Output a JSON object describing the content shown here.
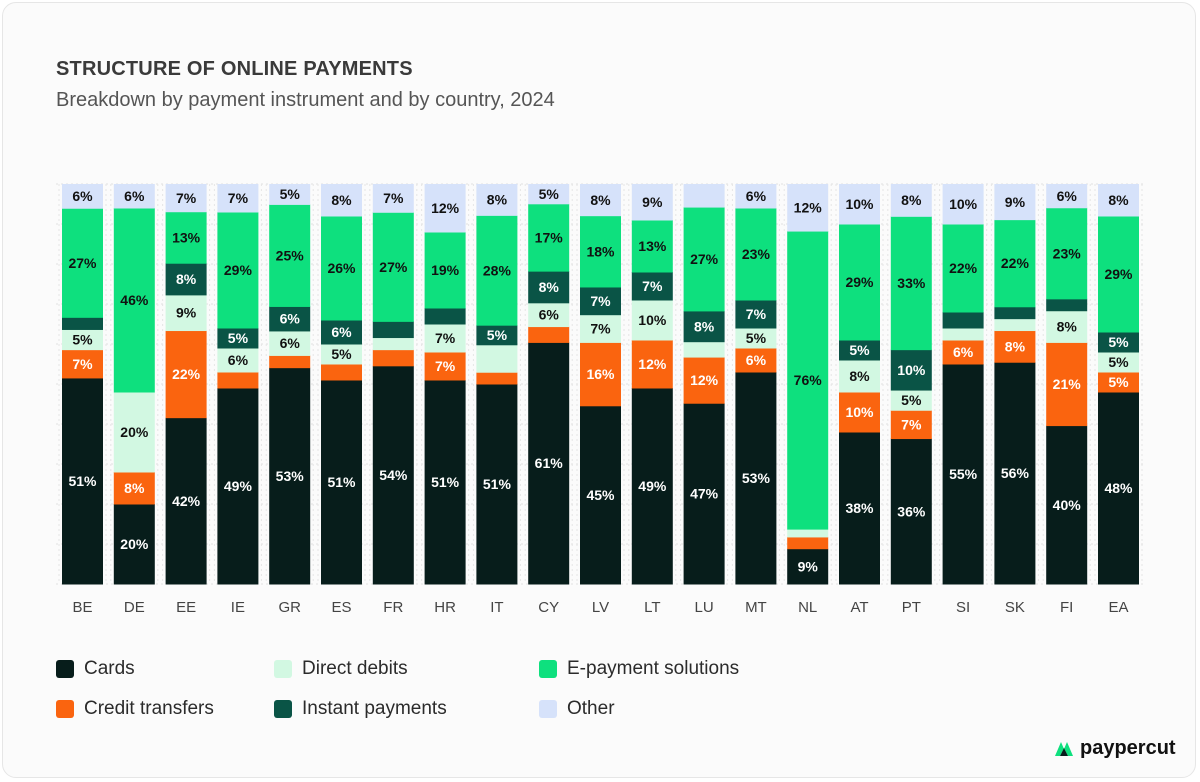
{
  "header": {
    "title": "STRUCTURE OF ONLINE PAYMENTS",
    "subtitle": "Breakdown by payment instrument and by country, 2024"
  },
  "brand": {
    "name": "paypercut",
    "logo_icon": "paypercut-logo-icon"
  },
  "colors": {
    "Cards": "#071d1b",
    "Credit transfers": "#fa640f",
    "Direct debits": "#d2f8e2",
    "Instant payments": "#0a5446",
    "E-payment solutions": "#0ee07e",
    "Other": "#d6e2fa"
  },
  "legend": [
    {
      "label": "Cards",
      "color": "#071d1b"
    },
    {
      "label": "Direct debits",
      "color": "#d2f8e2"
    },
    {
      "label": "E-payment solutions",
      "color": "#0ee07e"
    },
    {
      "label": "Credit transfers",
      "color": "#fa640f"
    },
    {
      "label": "Instant payments",
      "color": "#0a5446"
    },
    {
      "label": "Other",
      "color": "#d6e2fa"
    }
  ],
  "chart_data": {
    "type": "bar",
    "stacked": true,
    "normalized": true,
    "categories": [
      "BE",
      "DE",
      "EE",
      "IE",
      "GR",
      "ES",
      "FR",
      "HR",
      "IT",
      "CY",
      "LV",
      "LT",
      "LU",
      "MT",
      "NL",
      "AT",
      "PT",
      "SI",
      "SK",
      "FI",
      "EA"
    ],
    "series": [
      {
        "name": "Cards",
        "values": [
          51,
          20,
          42,
          49,
          53,
          51,
          54,
          51,
          51,
          61,
          45,
          49,
          47,
          53,
          9,
          38,
          36,
          55,
          56,
          40,
          48
        ]
      },
      {
        "name": "Credit transfers",
        "values": [
          7,
          8,
          22,
          4,
          3,
          4,
          4,
          7,
          3,
          4,
          16,
          12,
          12,
          6,
          3,
          10,
          7,
          6,
          8,
          21,
          5
        ]
      },
      {
        "name": "Direct debits",
        "values": [
          5,
          20,
          9,
          6,
          6,
          5,
          3,
          7,
          7,
          6,
          7,
          10,
          4,
          5,
          2,
          8,
          5,
          3,
          3,
          8,
          5
        ]
      },
      {
        "name": "Instant payments",
        "values": [
          3,
          0,
          8,
          5,
          6,
          6,
          4,
          4,
          5,
          8,
          7,
          7,
          8,
          7,
          0,
          5,
          10,
          4,
          3,
          3,
          5
        ]
      },
      {
        "name": "E-payment solutions",
        "values": [
          27,
          46,
          13,
          29,
          25,
          26,
          27,
          19,
          28,
          17,
          18,
          13,
          27,
          23,
          76,
          29,
          33,
          22,
          22,
          23,
          29
        ]
      },
      {
        "name": "Other",
        "values": [
          6,
          6,
          7,
          7,
          5,
          8,
          7,
          12,
          8,
          5,
          8,
          9,
          6,
          6,
          12,
          10,
          8,
          10,
          9,
          6,
          8
        ]
      }
    ],
    "data_labels": [
      [
        "51%",
        "20%",
        "42%",
        "49%",
        "53%",
        "51%",
        "54%",
        "51%",
        "51%",
        "61%",
        "45%",
        "49%",
        "47%",
        "53%",
        "9%",
        "38%",
        "36%",
        "55%",
        "56%",
        "40%",
        "48%"
      ],
      [
        "7%",
        "8%",
        "22%",
        "",
        "",
        "",
        "",
        "7%",
        "",
        "",
        "16%",
        "12%",
        "12%",
        "6%",
        "",
        "10%",
        "7%",
        "6%",
        "8%",
        "21%",
        "5%"
      ],
      [
        "5%",
        "20%",
        "9%",
        "6%",
        "6%",
        "5%",
        "",
        "7%",
        "",
        "6%",
        "7%",
        "10%",
        "",
        "5%",
        "",
        "8%",
        "5%",
        "",
        "",
        "8%",
        "5%"
      ],
      [
        "",
        "",
        "8%",
        "5%",
        "6%",
        "6%",
        "",
        "",
        "5%",
        "8%",
        "7%",
        "7%",
        "8%",
        "7%",
        "",
        "5%",
        "10%",
        "",
        "",
        "",
        "5%"
      ],
      [
        "27%",
        "46%",
        "13%",
        "29%",
        "25%",
        "26%",
        "27%",
        "19%",
        "28%",
        "17%",
        "18%",
        "13%",
        "27%",
        "23%",
        "76%",
        "29%",
        "33%",
        "22%",
        "22%",
        "23%",
        "29%"
      ],
      [
        "6%",
        "6%",
        "7%",
        "7%",
        "5%",
        "8%",
        "7%",
        "12%",
        "8%",
        "5%",
        "8%",
        "9%",
        "",
        "6%",
        "12%",
        "10%",
        "8%",
        "10%",
        "9%",
        "6%",
        "8%"
      ]
    ],
    "ylim": [
      0,
      100
    ],
    "grid": true,
    "legend_position": "bottom"
  }
}
